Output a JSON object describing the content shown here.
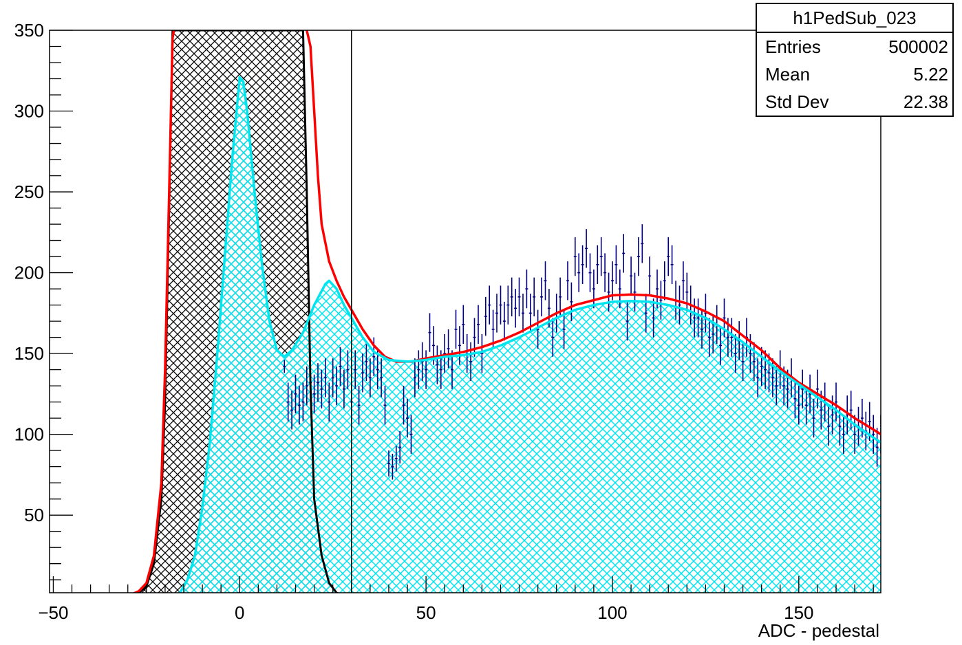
{
  "chart_data": {
    "type": "histogram",
    "histogram_name": "h1PedSub_023",
    "xlabel": "ADC - pedestal",
    "ylabel": "",
    "xlim": [
      -51,
      172
    ],
    "ylim": [
      2,
      350
    ],
    "x_ticks": [
      -50,
      0,
      50,
      100,
      150
    ],
    "x_tick_labels": [
      "−50",
      "0",
      "50",
      "100",
      "150"
    ],
    "y_ticks": [
      50,
      100,
      150,
      200,
      250,
      300,
      350
    ],
    "y_tick_labels": [
      "50",
      "100",
      "150",
      "200",
      "250",
      "300",
      "350"
    ],
    "vertical_marker_x": 30,
    "stats": {
      "title": "h1PedSub_023",
      "rows": [
        {
          "label": "Entries",
          "value": "500002"
        },
        {
          "label": "Mean",
          "value": "5.22"
        },
        {
          "label": "Std Dev",
          "value": "22.38"
        }
      ]
    },
    "series": [
      {
        "style": "black hatched area",
        "color": "#000000",
        "points": [
          [
            -30,
            0
          ],
          [
            -27,
            2
          ],
          [
            -25,
            6
          ],
          [
            -23,
            20
          ],
          [
            -21,
            60
          ],
          [
            -20,
            120
          ],
          [
            -19,
            230
          ],
          [
            -18,
            350
          ],
          [
            17,
            350
          ],
          [
            18,
            250
          ],
          [
            19,
            130
          ],
          [
            20,
            60
          ],
          [
            22,
            25
          ],
          [
            24,
            8
          ],
          [
            26,
            2
          ],
          [
            28,
            0
          ]
        ]
      },
      {
        "style": "red line",
        "color": "#ff0000",
        "points": [
          [
            -30,
            0
          ],
          [
            -27,
            3
          ],
          [
            -25,
            8
          ],
          [
            -23,
            25
          ],
          [
            -21,
            70
          ],
          [
            -20,
            140
          ],
          [
            -19,
            240
          ],
          [
            -18,
            345
          ],
          [
            -17,
            360
          ],
          [
            17,
            360
          ],
          [
            18,
            350
          ],
          [
            19,
            340
          ],
          [
            20,
            300
          ],
          [
            21,
            260
          ],
          [
            22,
            230
          ],
          [
            24,
            207
          ],
          [
            26,
            195
          ],
          [
            28,
            185
          ],
          [
            30,
            177
          ],
          [
            33,
            165
          ],
          [
            36,
            155
          ],
          [
            39,
            148
          ],
          [
            42,
            145
          ],
          [
            46,
            145
          ],
          [
            50,
            147
          ],
          [
            55,
            149
          ],
          [
            60,
            151
          ],
          [
            65,
            154
          ],
          [
            70,
            158
          ],
          [
            75,
            163
          ],
          [
            80,
            169
          ],
          [
            85,
            175
          ],
          [
            90,
            180
          ],
          [
            95,
            183
          ],
          [
            100,
            186
          ],
          [
            105,
            186.5
          ],
          [
            110,
            186
          ],
          [
            115,
            184
          ],
          [
            120,
            181
          ],
          [
            125,
            176
          ],
          [
            130,
            170
          ],
          [
            135,
            161
          ],
          [
            140,
            152
          ],
          [
            145,
            141
          ],
          [
            150,
            132
          ],
          [
            155,
            125
          ],
          [
            160,
            118
          ],
          [
            165,
            110
          ],
          [
            170,
            103
          ],
          [
            172,
            100
          ]
        ]
      },
      {
        "style": "cyan line with cyan hatched fill",
        "color": "#00e5ee",
        "points": [
          [
            -18,
            0
          ],
          [
            -16,
            2
          ],
          [
            -14,
            10
          ],
          [
            -12,
            25
          ],
          [
            -10,
            55
          ],
          [
            -8,
            95
          ],
          [
            -6,
            150
          ],
          [
            -4,
            210
          ],
          [
            -2,
            270
          ],
          [
            0,
            321
          ],
          [
            1,
            318
          ],
          [
            2,
            300
          ],
          [
            4,
            250
          ],
          [
            6,
            205
          ],
          [
            8,
            170
          ],
          [
            10,
            152
          ],
          [
            12,
            148
          ],
          [
            14,
            152
          ],
          [
            17,
            163
          ],
          [
            20,
            180
          ],
          [
            23,
            193
          ],
          [
            24,
            195
          ],
          [
            26,
            190
          ],
          [
            28,
            180
          ],
          [
            30,
            172
          ],
          [
            33,
            160
          ],
          [
            36,
            151
          ],
          [
            40,
            146
          ],
          [
            45,
            145
          ],
          [
            50,
            146
          ],
          [
            55,
            148
          ],
          [
            60,
            149
          ],
          [
            65,
            151
          ],
          [
            70,
            155
          ],
          [
            75,
            160
          ],
          [
            80,
            166
          ],
          [
            85,
            172
          ],
          [
            90,
            177
          ],
          [
            95,
            180
          ],
          [
            100,
            182
          ],
          [
            105,
            182.5
          ],
          [
            110,
            182
          ],
          [
            115,
            180
          ],
          [
            120,
            177
          ],
          [
            125,
            172
          ],
          [
            130,
            165
          ],
          [
            135,
            157
          ],
          [
            140,
            148
          ],
          [
            145,
            139
          ],
          [
            150,
            131
          ],
          [
            155,
            123
          ],
          [
            160,
            115
          ],
          [
            165,
            106
          ],
          [
            170,
            98
          ],
          [
            172,
            95
          ]
        ]
      }
    ],
    "data_points": [
      [
        -29,
        1,
        1
      ],
      [
        -27,
        2,
        1
      ],
      [
        -26,
        1,
        1
      ],
      [
        -25,
        1,
        1
      ],
      [
        -10,
        0.5,
        1
      ],
      [
        -8,
        1,
        1
      ],
      [
        -5,
        0.5,
        1
      ],
      [
        -2,
        1,
        1
      ],
      [
        0,
        2,
        1
      ],
      [
        2,
        1,
        1
      ],
      [
        12,
        142,
        4
      ],
      [
        13,
        120,
        12
      ],
      [
        14,
        115,
        12
      ],
      [
        15,
        125,
        12
      ],
      [
        16,
        118,
        12
      ],
      [
        17,
        120,
        12
      ],
      [
        18,
        130,
        12
      ],
      [
        19,
        132,
        12
      ],
      [
        20,
        125,
        12
      ],
      [
        21,
        132,
        12
      ],
      [
        22,
        128,
        12
      ],
      [
        23,
        135,
        12
      ],
      [
        24,
        120,
        12
      ],
      [
        25,
        135,
        12
      ],
      [
        26,
        130,
        12
      ],
      [
        27,
        142,
        12
      ],
      [
        28,
        128,
        12
      ],
      [
        29,
        140,
        12
      ],
      [
        30,
        120,
        12
      ],
      [
        31,
        140,
        12
      ],
      [
        32,
        118,
        12
      ],
      [
        33,
        138,
        12
      ],
      [
        34,
        145,
        12
      ],
      [
        35,
        135,
        12
      ],
      [
        36,
        148,
        12
      ],
      [
        37,
        140,
        12
      ],
      [
        38,
        135,
        12
      ],
      [
        39,
        118,
        12
      ],
      [
        40,
        82,
        8
      ],
      [
        41,
        80,
        8
      ],
      [
        42,
        85,
        8
      ],
      [
        43,
        92,
        10
      ],
      [
        44,
        118,
        12
      ],
      [
        45,
        110,
        12
      ],
      [
        46,
        100,
        12
      ],
      [
        47,
        135,
        12
      ],
      [
        48,
        140,
        12
      ],
      [
        49,
        145,
        12
      ],
      [
        50,
        140,
        12
      ],
      [
        51,
        163,
        12
      ],
      [
        52,
        155,
        12
      ],
      [
        53,
        143,
        12
      ],
      [
        54,
        140,
        12
      ],
      [
        55,
        150,
        12
      ],
      [
        56,
        153,
        12
      ],
      [
        57,
        140,
        12
      ],
      [
        58,
        165,
        12
      ],
      [
        59,
        155,
        12
      ],
      [
        60,
        168,
        12
      ],
      [
        61,
        150,
        12
      ],
      [
        62,
        145,
        12
      ],
      [
        63,
        160,
        12
      ],
      [
        64,
        168,
        12
      ],
      [
        65,
        150,
        12
      ],
      [
        66,
        173,
        12
      ],
      [
        67,
        180,
        12
      ],
      [
        68,
        165,
        12
      ],
      [
        69,
        175,
        12
      ],
      [
        70,
        180,
        12
      ],
      [
        71,
        170,
        12
      ],
      [
        72,
        180,
        12
      ],
      [
        73,
        185,
        12
      ],
      [
        74,
        178,
        12
      ],
      [
        75,
        185,
        12
      ],
      [
        76,
        175,
        12
      ],
      [
        77,
        190,
        12
      ],
      [
        78,
        175,
        12
      ],
      [
        79,
        185,
        12
      ],
      [
        80,
        165,
        12
      ],
      [
        81,
        185,
        12
      ],
      [
        82,
        195,
        12
      ],
      [
        83,
        178,
        12
      ],
      [
        84,
        160,
        12
      ],
      [
        85,
        175,
        12
      ],
      [
        86,
        185,
        12
      ],
      [
        87,
        165,
        12
      ],
      [
        88,
        195,
        12
      ],
      [
        89,
        182,
        12
      ],
      [
        90,
        210,
        12
      ],
      [
        91,
        200,
        12
      ],
      [
        92,
        205,
        12
      ],
      [
        93,
        215,
        12
      ],
      [
        94,
        200,
        12
      ],
      [
        95,
        190,
        12
      ],
      [
        96,
        205,
        12
      ],
      [
        97,
        210,
        12
      ],
      [
        98,
        200,
        12
      ],
      [
        99,
        188,
        12
      ],
      [
        100,
        195,
        12
      ],
      [
        101,
        205,
        12
      ],
      [
        102,
        190,
        12
      ],
      [
        103,
        212,
        12
      ],
      [
        104,
        170,
        12
      ],
      [
        105,
        198,
        12
      ],
      [
        106,
        188,
        12
      ],
      [
        107,
        210,
        12
      ],
      [
        108,
        218,
        12
      ],
      [
        109,
        175,
        12
      ],
      [
        110,
        198,
        12
      ],
      [
        111,
        172,
        12
      ],
      [
        112,
        190,
        12
      ],
      [
        113,
        183,
        12
      ],
      [
        114,
        195,
        12
      ],
      [
        115,
        210,
        12
      ],
      [
        116,
        205,
        12
      ],
      [
        117,
        183,
        12
      ],
      [
        118,
        180,
        12
      ],
      [
        119,
        195,
        12
      ],
      [
        120,
        188,
        12
      ],
      [
        121,
        180,
        12
      ],
      [
        122,
        172,
        12
      ],
      [
        123,
        172,
        12
      ],
      [
        124,
        165,
        12
      ],
      [
        125,
        175,
        12
      ],
      [
        126,
        160,
        12
      ],
      [
        127,
        162,
        12
      ],
      [
        128,
        168,
        12
      ],
      [
        129,
        155,
        12
      ],
      [
        130,
        172,
        12
      ],
      [
        131,
        160,
        12
      ],
      [
        132,
        160,
        12
      ],
      [
        133,
        150,
        12
      ],
      [
        134,
        158,
        12
      ],
      [
        135,
        145,
        12
      ],
      [
        136,
        160,
        12
      ],
      [
        137,
        150,
        12
      ],
      [
        138,
        145,
        12
      ],
      [
        139,
        135,
        12
      ],
      [
        140,
        142,
        12
      ],
      [
        141,
        140,
        12
      ],
      [
        142,
        138,
        12
      ],
      [
        143,
        135,
        12
      ],
      [
        144,
        130,
        12
      ],
      [
        145,
        140,
        12
      ],
      [
        146,
        130,
        12
      ],
      [
        147,
        128,
        12
      ],
      [
        148,
        135,
        12
      ],
      [
        149,
        122,
        12
      ],
      [
        150,
        118,
        12
      ],
      [
        151,
        128,
        12
      ],
      [
        152,
        118,
        12
      ],
      [
        153,
        125,
        12
      ],
      [
        154,
        110,
        12
      ],
      [
        155,
        128,
        12
      ],
      [
        156,
        115,
        12
      ],
      [
        157,
        120,
        12
      ],
      [
        158,
        105,
        12
      ],
      [
        159,
        112,
        12
      ],
      [
        160,
        120,
        12
      ],
      [
        161,
        105,
        12
      ],
      [
        162,
        100,
        12
      ],
      [
        163,
        112,
        12
      ],
      [
        164,
        115,
        12
      ],
      [
        165,
        100,
        12
      ],
      [
        166,
        105,
        12
      ],
      [
        167,
        110,
        12
      ],
      [
        168,
        102,
        12
      ],
      [
        169,
        108,
        12
      ],
      [
        170,
        100,
        12
      ],
      [
        171,
        92,
        12
      ],
      [
        172,
        100,
        12
      ]
    ]
  }
}
